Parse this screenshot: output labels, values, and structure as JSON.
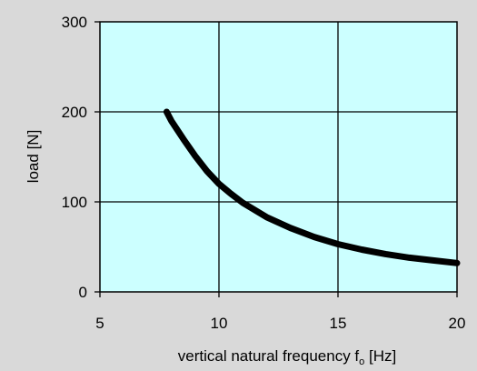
{
  "colors": {
    "background": "#d9d9d9",
    "plot_background": "#ccffff",
    "grid": "#000000",
    "curve": "#000000"
  },
  "chart_data": {
    "type": "line",
    "title": "",
    "xlabel": "vertical natural frequency f",
    "xlabel_subscript": "o",
    "xlabel_unit": " [Hz]",
    "ylabel": "load [N]",
    "xlim": [
      5,
      20
    ],
    "ylim": [
      0,
      300
    ],
    "x_ticks": [
      5,
      10,
      15,
      20
    ],
    "y_ticks": [
      0,
      100,
      200,
      300
    ],
    "grid": true,
    "legend": "none",
    "series": [
      {
        "x": [
          7.8,
          8.0,
          8.5,
          9.0,
          9.5,
          10.0,
          10.5,
          11.0,
          11.5,
          12.0,
          13.0,
          14.0,
          15.0,
          16.0,
          17.0,
          18.0,
          19.0,
          20.0
        ],
        "values": [
          200,
          190,
          170,
          151,
          134,
          120,
          109,
          99,
          91,
          83,
          71,
          61,
          53,
          47,
          42,
          38,
          35,
          32
        ]
      }
    ]
  }
}
